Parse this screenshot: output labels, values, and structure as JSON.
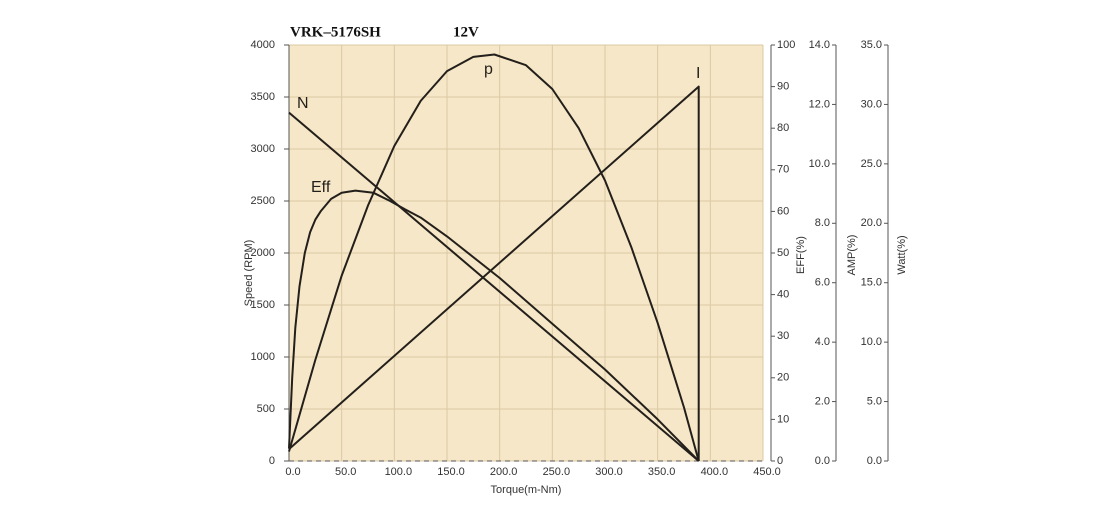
{
  "chart_data": {
    "type": "line",
    "title": "VRK–5176SH",
    "subtitle": "12V",
    "x_label": "Torque(m-Nm)",
    "y_label": "Speed (RPM)",
    "y2_label": "EFF(%)",
    "y3_label": "AMP(%)",
    "y4_label": "Watt(%)",
    "xlim": [
      0,
      450
    ],
    "xticks": [
      {
        "value": 0,
        "label": "0.0"
      },
      {
        "value": 50,
        "label": "50.0"
      },
      {
        "value": 100,
        "label": "100.0"
      },
      {
        "value": 150,
        "label": "150.0"
      },
      {
        "value": 200,
        "label": "200.0"
      },
      {
        "value": 250,
        "label": "250.0"
      },
      {
        "value": 300,
        "label": "300.0"
      },
      {
        "value": 350,
        "label": "350.0"
      },
      {
        "value": 400,
        "label": "400.0"
      },
      {
        "value": 450,
        "label": "450.0"
      }
    ],
    "ylim": [
      0,
      4000
    ],
    "yticks": [
      0,
      500,
      1000,
      1500,
      2000,
      2500,
      3000,
      3500,
      4000
    ],
    "y2lim": [
      0,
      100
    ],
    "y2ticks": [
      0,
      10,
      20,
      30,
      40,
      50,
      60,
      70,
      80,
      90,
      100
    ],
    "y3lim": [
      0,
      14
    ],
    "y3ticks": [
      {
        "value": 0,
        "label": "0.0"
      },
      {
        "value": 2,
        "label": "2.0"
      },
      {
        "value": 4,
        "label": "4.0"
      },
      {
        "value": 6,
        "label": "6.0"
      },
      {
        "value": 8,
        "label": "8.0"
      },
      {
        "value": 10,
        "label": "10.0"
      },
      {
        "value": 12,
        "label": "12.0"
      },
      {
        "value": 14,
        "label": "14.0"
      }
    ],
    "y4lim": [
      0,
      35
    ],
    "y4ticks": [
      {
        "value": 0,
        "label": "0.0"
      },
      {
        "value": 5,
        "label": "5.0"
      },
      {
        "value": 10,
        "label": "10.0"
      },
      {
        "value": 15,
        "label": "15.0"
      },
      {
        "value": 20,
        "label": "20.0"
      },
      {
        "value": 25,
        "label": "25.0"
      },
      {
        "value": 30,
        "label": "30.0"
      },
      {
        "value": 35,
        "label": "35.0"
      }
    ],
    "grid": true,
    "series": [
      {
        "name": "N",
        "color": "#231f1a",
        "axis": "y",
        "x": [
          0,
          389
        ],
        "values": [
          3350,
          0
        ]
      },
      {
        "name": "Eff",
        "color": "#231f1a",
        "axis": "y2",
        "x": [
          0,
          3,
          6,
          10,
          15,
          20,
          25,
          30,
          40,
          50,
          63,
          80,
          96,
          110,
          125,
          150,
          200,
          250,
          300,
          350,
          389
        ],
        "values": [
          3,
          20,
          32,
          42,
          50,
          55,
          58,
          60,
          63,
          64.5,
          65,
          64.5,
          62.5,
          60.5,
          58.5,
          54,
          44,
          33,
          22,
          10,
          0
        ]
      },
      {
        "name": "p",
        "color": "#231f1a",
        "axis": "y4",
        "x": [
          0,
          25,
          50,
          75,
          100,
          125,
          150,
          175,
          195,
          225,
          250,
          275,
          300,
          325,
          350,
          375,
          389
        ],
        "values": [
          0.8,
          8.5,
          15.6,
          21.5,
          26.5,
          30.3,
          32.8,
          34.0,
          34.2,
          33.3,
          31.3,
          28.0,
          23.6,
          18.0,
          11.6,
          4.5,
          0
        ]
      },
      {
        "name": "I",
        "color": "#231f1a",
        "axis": "y3",
        "x": [
          0,
          389,
          389
        ],
        "values": [
          0.4,
          12.6,
          0
        ]
      }
    ]
  }
}
